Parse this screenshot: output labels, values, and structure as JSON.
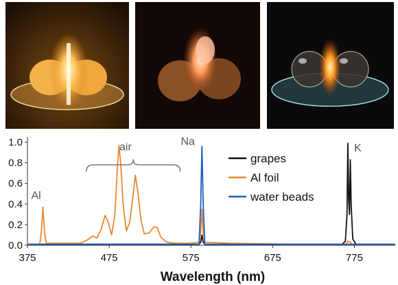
{
  "photos": [
    {
      "subject": "grapes"
    },
    {
      "subject": "Al foil"
    },
    {
      "subject": "water beads"
    }
  ],
  "chart_data": {
    "type": "line",
    "xlabel": "Wavelength (nm)",
    "ylabel": "",
    "xlim": [
      375,
      825
    ],
    "ylim": [
      0,
      1.05
    ],
    "xticks": [
      375,
      475,
      575,
      675,
      775
    ],
    "yticks": [
      0.0,
      0.2,
      0.4,
      0.6,
      0.8,
      1.0
    ],
    "ytick_labels": [
      "0.0",
      "0.2",
      "0.4",
      "0.6",
      "0.8",
      "1.0"
    ],
    "grid": false,
    "legend_position": "top-right",
    "series": [
      {
        "name": "grapes",
        "color": "#111111",
        "points": [
          [
            375,
            0.01
          ],
          [
            585,
            0.01
          ],
          [
            587,
            0.03
          ],
          [
            588.5,
            0.1
          ],
          [
            590,
            0.03
          ],
          [
            592,
            0.01
          ],
          [
            760,
            0.01
          ],
          [
            764,
            0.04
          ],
          [
            766,
            0.3
          ],
          [
            767,
            0.99
          ],
          [
            768,
            0.45
          ],
          [
            769,
            0.3
          ],
          [
            770,
            0.83
          ],
          [
            771,
            0.4
          ],
          [
            773,
            0.06
          ],
          [
            777,
            0.01
          ],
          [
            825,
            0.01
          ]
        ]
      },
      {
        "name": "Al foil",
        "color": "#e8892f",
        "points": [
          [
            375,
            0.01
          ],
          [
            390,
            0.01
          ],
          [
            392,
            0.12
          ],
          [
            394,
            0.37
          ],
          [
            396,
            0.12
          ],
          [
            398,
            0.02
          ],
          [
            440,
            0.02
          ],
          [
            448,
            0.05
          ],
          [
            455,
            0.09
          ],
          [
            460,
            0.07
          ],
          [
            465,
            0.15
          ],
          [
            470,
            0.29
          ],
          [
            474,
            0.22
          ],
          [
            478,
            0.1
          ],
          [
            482,
            0.3
          ],
          [
            485,
            0.74
          ],
          [
            487,
            0.97
          ],
          [
            489,
            0.8
          ],
          [
            492,
            0.4
          ],
          [
            496,
            0.14
          ],
          [
            500,
            0.22
          ],
          [
            504,
            0.47
          ],
          [
            507,
            0.68
          ],
          [
            510,
            0.52
          ],
          [
            514,
            0.24
          ],
          [
            518,
            0.11
          ],
          [
            524,
            0.12
          ],
          [
            530,
            0.18
          ],
          [
            534,
            0.17
          ],
          [
            538,
            0.08
          ],
          [
            545,
            0.03
          ],
          [
            555,
            0.02
          ],
          [
            575,
            0.02
          ],
          [
            585,
            0.03
          ],
          [
            587,
            0.12
          ],
          [
            588.5,
            0.35
          ],
          [
            590,
            0.12
          ],
          [
            592,
            0.03
          ],
          [
            620,
            0.02
          ],
          [
            700,
            0.01
          ],
          [
            765,
            0.01
          ],
          [
            767,
            0.04
          ],
          [
            770,
            0.03
          ],
          [
            772,
            0.01
          ],
          [
            825,
            0.01
          ]
        ]
      },
      {
        "name": "water beads",
        "color": "#1f5fbf",
        "points": [
          [
            375,
            0.01
          ],
          [
            585,
            0.01
          ],
          [
            587,
            0.4
          ],
          [
            588.5,
            0.96
          ],
          [
            590,
            0.4
          ],
          [
            592,
            0.01
          ],
          [
            825,
            0.01
          ]
        ]
      }
    ],
    "annotations": [
      {
        "text": "Al",
        "x": 394,
        "y": 0.37
      },
      {
        "text": "air",
        "x": 495,
        "y": 0.8
      },
      {
        "text": "Na",
        "x": 589,
        "y": 0.96
      },
      {
        "text": "K",
        "x": 768,
        "y": 0.99
      }
    ],
    "air_bracket": {
      "x_start": 447,
      "x_end": 562,
      "y": 0.78
    }
  }
}
